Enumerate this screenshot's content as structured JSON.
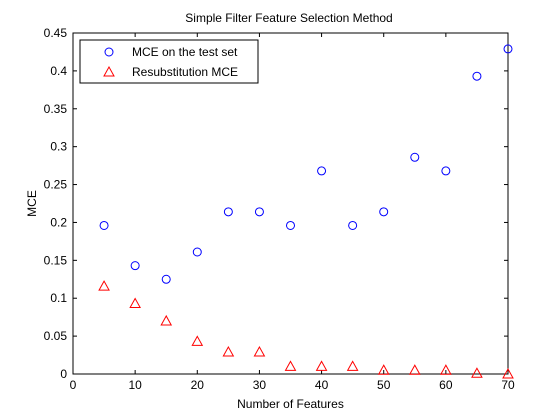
{
  "chart_data": {
    "type": "scatter",
    "title": "Simple Filter Feature Selection Method",
    "xlabel": "Number of Features",
    "ylabel": "MCE",
    "xlim": [
      0,
      70
    ],
    "ylim": [
      0,
      0.45
    ],
    "xticks": [
      0,
      10,
      20,
      30,
      40,
      50,
      60,
      70
    ],
    "yticks": [
      0,
      0.05,
      0.1,
      0.15,
      0.2,
      0.25,
      0.3,
      0.35,
      0.4,
      0.45
    ],
    "xtick_labels": [
      "0",
      "10",
      "20",
      "30",
      "40",
      "50",
      "60",
      "70"
    ],
    "ytick_labels": [
      "0",
      "0.05",
      "0.1",
      "0.15",
      "0.2",
      "0.25",
      "0.3",
      "0.35",
      "0.4",
      "0.45"
    ],
    "grid": false,
    "legend_position": "top-left",
    "x": [
      5,
      10,
      15,
      20,
      25,
      30,
      35,
      40,
      45,
      50,
      55,
      60,
      65,
      70
    ],
    "series": [
      {
        "name": "MCE on the test set",
        "marker": "circle",
        "color": "#0000ff",
        "values": [
          0.196,
          0.143,
          0.125,
          0.161,
          0.214,
          0.214,
          0.196,
          0.268,
          0.196,
          0.214,
          0.286,
          0.268,
          0.393,
          0.429
        ]
      },
      {
        "name": "Resubstitution MCE",
        "marker": "triangle",
        "color": "#ff0000",
        "values": [
          0.116,
          0.093,
          0.07,
          0.043,
          0.029,
          0.029,
          0.01,
          0.01,
          0.01,
          0.005,
          0.005,
          0.005,
          0.001,
          0.0
        ]
      }
    ]
  }
}
